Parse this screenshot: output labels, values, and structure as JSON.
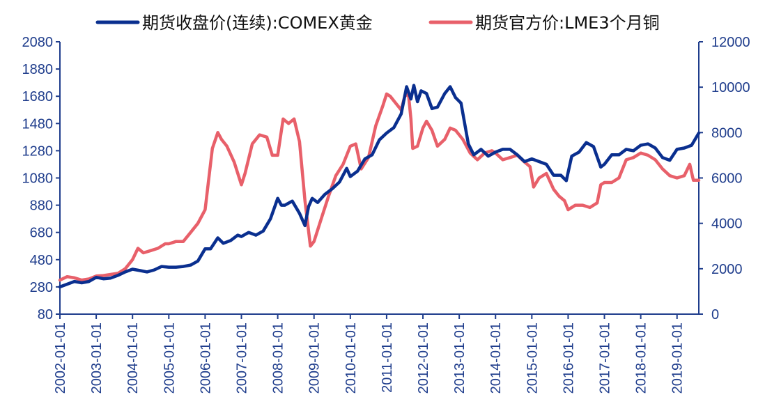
{
  "chart_data": {
    "type": "line",
    "legend": {
      "placement": "top"
    },
    "x_tick_labels": [
      "2002-01-01",
      "2003-01-01",
      "2004-01-01",
      "2005-01-01",
      "2006-01-01",
      "2007-01-01",
      "2008-01-01",
      "2009-01-01",
      "2010-01-01",
      "2011-01-01",
      "2012-01-01",
      "2013-01-01",
      "2014-01-01",
      "2015-01-01",
      "2016-01-01",
      "2017-01-01",
      "2018-01-01",
      "2019-01-01"
    ],
    "x_range": [
      2002.0,
      2019.6
    ],
    "y_left": {
      "range": [
        80,
        2080
      ],
      "ticks": [
        "80",
        "280",
        "480",
        "680",
        "880",
        "1080",
        "1280",
        "1480",
        "1680",
        "1880",
        "2080"
      ]
    },
    "y_right": {
      "range": [
        0,
        12000
      ],
      "ticks": [
        "0",
        "2000",
        "4000",
        "6000",
        "8000",
        "10000",
        "12000"
      ]
    },
    "colors": {
      "axis": "#1f3d8c",
      "gold": "#0a2f8f",
      "copper": "#e8606a"
    },
    "series": [
      {
        "name": "期货收盘价(连续):COMEX黄金",
        "axis": "left",
        "color": "#0a2f8f",
        "x": [
          2002.0,
          2002.2,
          2002.4,
          2002.6,
          2002.8,
          2003.0,
          2003.2,
          2003.4,
          2003.6,
          2003.8,
          2004.0,
          2004.2,
          2004.4,
          2004.6,
          2004.8,
          2005.0,
          2005.2,
          2005.4,
          2005.6,
          2005.8,
          2006.0,
          2006.15,
          2006.35,
          2006.5,
          2006.7,
          2006.9,
          2007.0,
          2007.2,
          2007.4,
          2007.6,
          2007.8,
          2008.0,
          2008.1,
          2008.2,
          2008.4,
          2008.6,
          2008.75,
          2008.85,
          2008.95,
          2009.1,
          2009.3,
          2009.5,
          2009.7,
          2009.9,
          2010.0,
          2010.2,
          2010.4,
          2010.6,
          2010.8,
          2011.0,
          2011.2,
          2011.4,
          2011.55,
          2011.67,
          2011.75,
          2011.85,
          2011.95,
          2012.1,
          2012.25,
          2012.4,
          2012.6,
          2012.75,
          2012.9,
          2013.05,
          2013.25,
          2013.4,
          2013.6,
          2013.8,
          2014.0,
          2014.2,
          2014.4,
          2014.6,
          2014.8,
          2015.0,
          2015.2,
          2015.4,
          2015.6,
          2015.8,
          2015.95,
          2016.1,
          2016.3,
          2016.5,
          2016.7,
          2016.9,
          2017.0,
          2017.2,
          2017.4,
          2017.6,
          2017.8,
          2018.0,
          2018.2,
          2018.4,
          2018.6,
          2018.8,
          2019.0,
          2019.2,
          2019.4,
          2019.6
        ],
        "values": [
          280,
          300,
          320,
          310,
          320,
          350,
          340,
          345,
          365,
          390,
          410,
          400,
          390,
          405,
          430,
          425,
          425,
          430,
          440,
          470,
          560,
          560,
          640,
          600,
          620,
          660,
          650,
          680,
          660,
          690,
          780,
          930,
          880,
          880,
          910,
          820,
          730,
          870,
          930,
          900,
          960,
          1000,
          1050,
          1150,
          1090,
          1130,
          1220,
          1250,
          1360,
          1410,
          1450,
          1550,
          1750,
          1660,
          1760,
          1640,
          1720,
          1700,
          1590,
          1600,
          1700,
          1750,
          1670,
          1630,
          1330,
          1250,
          1290,
          1240,
          1270,
          1290,
          1290,
          1250,
          1200,
          1220,
          1200,
          1180,
          1100,
          1100,
          1060,
          1240,
          1270,
          1340,
          1310,
          1160,
          1180,
          1250,
          1250,
          1290,
          1280,
          1320,
          1330,
          1300,
          1230,
          1210,
          1290,
          1300,
          1320,
          1410
        ]
      },
      {
        "name": "期货官方价:LME3个月铜",
        "axis": "right",
        "color": "#e8606a",
        "x": [
          2002.0,
          2002.2,
          2002.4,
          2002.6,
          2002.8,
          2003.0,
          2003.2,
          2003.4,
          2003.6,
          2003.8,
          2004.0,
          2004.15,
          2004.3,
          2004.5,
          2004.7,
          2004.9,
          2005.0,
          2005.2,
          2005.4,
          2005.6,
          2005.8,
          2006.0,
          2006.2,
          2006.35,
          2006.45,
          2006.6,
          2006.8,
          2007.0,
          2007.1,
          2007.3,
          2007.5,
          2007.7,
          2007.85,
          2008.0,
          2008.15,
          2008.3,
          2008.45,
          2008.6,
          2008.75,
          2008.9,
          2009.0,
          2009.2,
          2009.4,
          2009.6,
          2009.8,
          2010.0,
          2010.15,
          2010.3,
          2010.5,
          2010.7,
          2010.9,
          2011.0,
          2011.1,
          2011.25,
          2011.4,
          2011.5,
          2011.6,
          2011.67,
          2011.72,
          2011.85,
          2012.0,
          2012.1,
          2012.25,
          2012.4,
          2012.6,
          2012.75,
          2012.9,
          2013.1,
          2013.3,
          2013.5,
          2013.7,
          2013.9,
          2014.0,
          2014.2,
          2014.4,
          2014.6,
          2014.8,
          2014.95,
          2015.05,
          2015.2,
          2015.4,
          2015.6,
          2015.75,
          2015.9,
          2016.0,
          2016.2,
          2016.4,
          2016.6,
          2016.8,
          2016.9,
          2017.0,
          2017.2,
          2017.4,
          2017.6,
          2017.8,
          2018.0,
          2018.2,
          2018.4,
          2018.6,
          2018.8,
          2019.0,
          2019.2,
          2019.35,
          2019.45,
          2019.6
        ],
        "values": [
          1500,
          1650,
          1600,
          1500,
          1550,
          1680,
          1700,
          1750,
          1800,
          2000,
          2400,
          2900,
          2700,
          2800,
          2900,
          3100,
          3100,
          3200,
          3200,
          3600,
          4000,
          4600,
          7300,
          8000,
          7700,
          7400,
          6700,
          5700,
          6200,
          7500,
          7900,
          7800,
          7000,
          7000,
          8600,
          8400,
          8600,
          7600,
          5000,
          3000,
          3200,
          4200,
          5200,
          6100,
          6600,
          7400,
          7500,
          6400,
          6900,
          8300,
          9200,
          9700,
          9600,
          9300,
          9000,
          9600,
          9700,
          8600,
          7300,
          7400,
          8200,
          8500,
          8100,
          7400,
          7700,
          8200,
          8100,
          7700,
          7100,
          6800,
          7100,
          7200,
          7100,
          6800,
          6900,
          7000,
          6700,
          6500,
          5600,
          6000,
          6200,
          5500,
          5200,
          5000,
          4600,
          4800,
          4800,
          4700,
          4900,
          5700,
          5800,
          5800,
          6000,
          6800,
          6900,
          7100,
          7000,
          6800,
          6400,
          6100,
          6000,
          6100,
          6600,
          5900,
          5900
        ]
      }
    ]
  }
}
